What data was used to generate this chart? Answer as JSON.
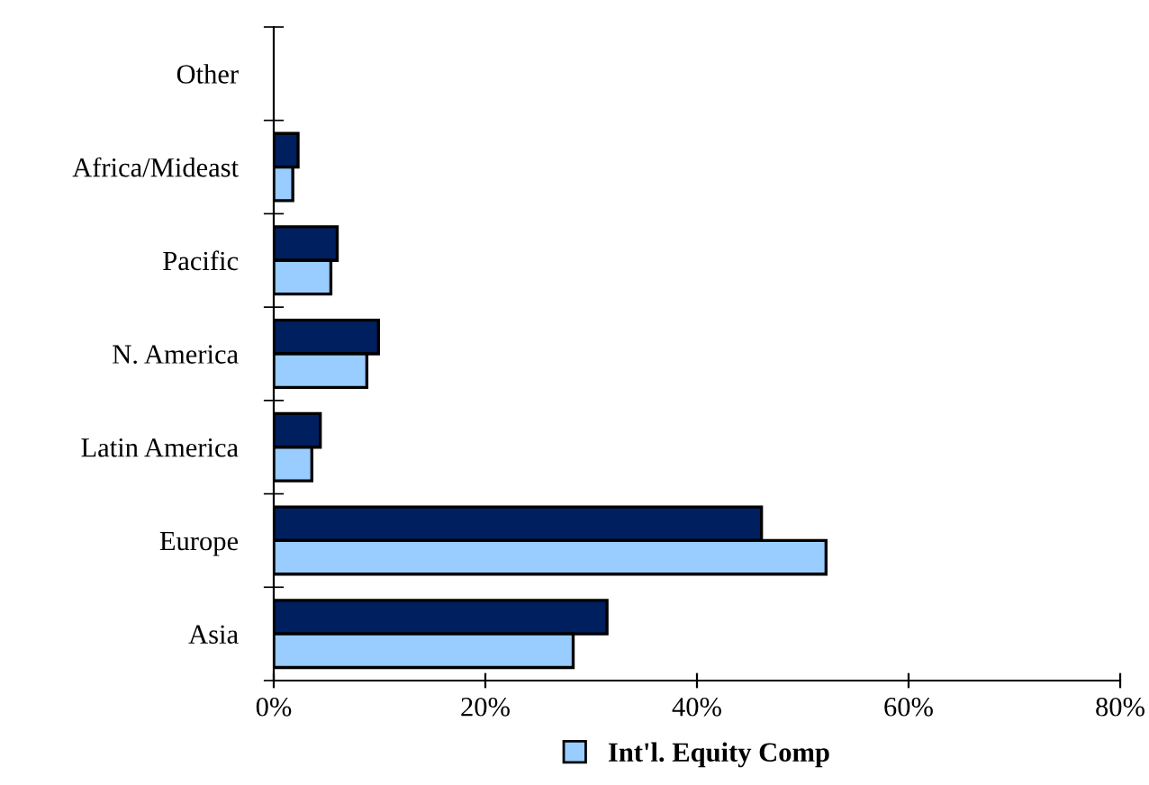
{
  "chart_data": {
    "type": "bar",
    "orientation": "horizontal",
    "categories": [
      "Other",
      "Africa/Mideast",
      "Pacific",
      "N. America",
      "Latin America",
      "Europe",
      "Asia"
    ],
    "series": [
      {
        "color": "#001f5f",
        "values": [
          null,
          2.3,
          6.0,
          9.9,
          4.4,
          46.1,
          31.5
        ]
      },
      {
        "name": "Int'l. Equity Comp",
        "color": "#99ccff",
        "values": [
          null,
          1.8,
          5.4,
          8.8,
          3.6,
          52.2,
          28.3
        ]
      }
    ],
    "xlim": [
      0,
      80
    ],
    "xticks": [
      {
        "value": 0,
        "label": "0%"
      },
      {
        "value": 20,
        "label": "20%"
      },
      {
        "value": 40,
        "label": "40%"
      },
      {
        "value": 60,
        "label": "60%"
      },
      {
        "value": 80,
        "label": "80%"
      }
    ],
    "grid": false,
    "legend": "bottom"
  }
}
